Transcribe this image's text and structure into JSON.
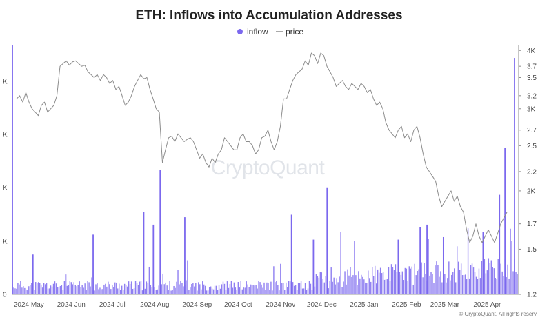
{
  "chart_data": {
    "type": "bar+line",
    "title": "ETH: Inflows into Accumulation Addresses",
    "watermark": "CryptoQuant",
    "credit": "© CryptoQuant. All rights reserv",
    "legend": [
      {
        "name": "inflow",
        "color": "#7b68ee",
        "marker": "dot"
      },
      {
        "name": "price",
        "color": "#8c8c8c",
        "marker": "line"
      }
    ],
    "legend_position": "top-center",
    "x_tick_labels": [
      "2024 May",
      "2024 Jun",
      "2024 Jul",
      "2024 Aug",
      "2024 Sep",
      "2024 Oct",
      "2024 Nov",
      "2024 Dec",
      "2025 Jan",
      "2025 Feb",
      "2025 Mar",
      "2025 Apr"
    ],
    "left_axis": {
      "ticks": [
        "0",
        "K",
        "K",
        "K",
        "K"
      ],
      "series": "inflow"
    },
    "right_axis": {
      "ticks": [
        "1.2",
        "1.5",
        "1.7",
        "2K",
        "2.2",
        "2.5",
        "2.7",
        "3K",
        "3.2",
        "3.5",
        "3.7",
        "4K"
      ],
      "unit": "price (K)",
      "ylim": [
        1.2,
        4.1
      ]
    },
    "x_range": [
      "2024-04-19",
      "2025-04-23"
    ],
    "grid": false,
    "series": [
      {
        "name": "price",
        "color": "#8c8c8c",
        "values_k": [
          3.15,
          3.2,
          3.1,
          3.25,
          3.1,
          3.0,
          2.95,
          2.9,
          3.05,
          3.1,
          2.95,
          3.0,
          3.05,
          3.2,
          3.7,
          3.75,
          3.8,
          3.72,
          3.78,
          3.8,
          3.75,
          3.7,
          3.72,
          3.6,
          3.55,
          3.5,
          3.55,
          3.45,
          3.55,
          3.5,
          3.4,
          3.45,
          3.3,
          3.35,
          3.2,
          3.05,
          3.1,
          3.2,
          3.35,
          3.45,
          3.55,
          3.48,
          3.5,
          3.3,
          3.15,
          3.0,
          2.95,
          2.3,
          2.45,
          2.6,
          2.62,
          2.55,
          2.65,
          2.6,
          2.55,
          2.58,
          2.6,
          2.55,
          2.45,
          2.35,
          2.4,
          2.3,
          2.25,
          2.35,
          2.3,
          2.4,
          2.45,
          2.6,
          2.55,
          2.5,
          2.45,
          2.45,
          2.6,
          2.65,
          2.55,
          2.55,
          2.5,
          2.4,
          2.45,
          2.6,
          2.62,
          2.7,
          2.55,
          2.45,
          2.55,
          2.75,
          3.15,
          3.15,
          3.3,
          3.45,
          3.55,
          3.6,
          3.65,
          3.8,
          3.72,
          3.95,
          3.9,
          3.75,
          3.95,
          3.9,
          3.7,
          3.6,
          3.5,
          3.35,
          3.4,
          3.45,
          3.35,
          3.3,
          3.4,
          3.35,
          3.3,
          3.4,
          3.35,
          3.25,
          3.3,
          3.15,
          3.05,
          3.1,
          3.0,
          2.8,
          2.7,
          2.65,
          2.6,
          2.7,
          2.75,
          2.6,
          2.65,
          2.55,
          2.7,
          2.75,
          2.6,
          2.4,
          2.25,
          2.2,
          2.15,
          2.1,
          1.95,
          1.85,
          1.9,
          1.95,
          2.0,
          1.9,
          1.95,
          1.85,
          1.8,
          1.65,
          1.55,
          1.6,
          1.7,
          1.6,
          1.55,
          1.6,
          1.65,
          1.6,
          1.55,
          1.62,
          1.7,
          1.75,
          1.8
        ]
      },
      {
        "name": "inflow",
        "color": "#7b68ee",
        "unit": "relative",
        "spikes": [
          {
            "date": "2024-04-19",
            "value": 1.0
          },
          {
            "date": "2024-05-04",
            "value": 0.16
          },
          {
            "date": "2024-05-28",
            "value": 0.08
          },
          {
            "date": "2024-06-17",
            "value": 0.24
          },
          {
            "date": "2024-07-24",
            "value": 0.33
          },
          {
            "date": "2024-07-31",
            "value": 0.28
          },
          {
            "date": "2024-08-05",
            "value": 0.5
          },
          {
            "date": "2024-08-23",
            "value": 0.31
          },
          {
            "date": "2024-11-09",
            "value": 0.32
          },
          {
            "date": "2024-11-25",
            "value": 0.22
          },
          {
            "date": "2024-12-05",
            "value": 0.43
          },
          {
            "date": "2025-01-26",
            "value": 0.22
          },
          {
            "date": "2025-02-11",
            "value": 0.27
          },
          {
            "date": "2025-02-16",
            "value": 0.28
          },
          {
            "date": "2025-02-28",
            "value": 0.23
          },
          {
            "date": "2025-03-29",
            "value": 0.25
          },
          {
            "date": "2025-04-10",
            "value": 0.4
          },
          {
            "date": "2025-04-14",
            "value": 0.59
          },
          {
            "date": "2025-04-21",
            "value": 0.95
          }
        ]
      }
    ]
  }
}
